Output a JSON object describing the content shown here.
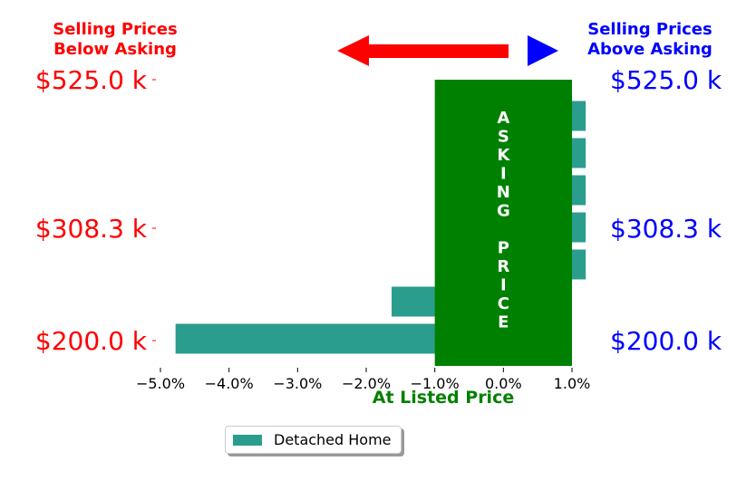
{
  "chart_data": {
    "type": "bar",
    "orientation": "horizontal",
    "header_left": [
      "Selling Prices",
      "Below Asking"
    ],
    "header_right": [
      "Selling Prices",
      "Above Asking"
    ],
    "xlabel": "At Listed Price",
    "x_ticks": [
      "−5.0%",
      "−4.0%",
      "−3.0%",
      "−2.0%",
      "−1.0%",
      "0.0%",
      "1.0%"
    ],
    "xlim": [
      -5.0,
      1.0
    ],
    "y_ticks_left": [
      "$525.0 k",
      "$308.3 k",
      "$200.0 k"
    ],
    "y_ticks_right": [
      "$525.0 k",
      "$308.3 k",
      "$200.0 k"
    ],
    "overlay_label": [
      "A",
      "S",
      "K",
      "I",
      "N",
      "G",
      "",
      "P",
      "R",
      "I",
      "C",
      "E"
    ],
    "overlay_range": [
      -1.0,
      1.0
    ],
    "series": [
      {
        "name": "Detached Home",
        "values": [
          1.2,
          1.2,
          1.2,
          1.2,
          1.2,
          -1.63,
          -4.78
        ]
      }
    ],
    "legend_position": "bottom-center",
    "grid": false
  },
  "colors": {
    "bar": "#2a9d8f",
    "overlay": "#008000",
    "left_text": "#ff0000",
    "right_text": "#0000ff",
    "xlabel": "#008000"
  },
  "icons": {
    "left": "red-left-arrow-icon",
    "right": "blue-right-triangle-icon"
  }
}
